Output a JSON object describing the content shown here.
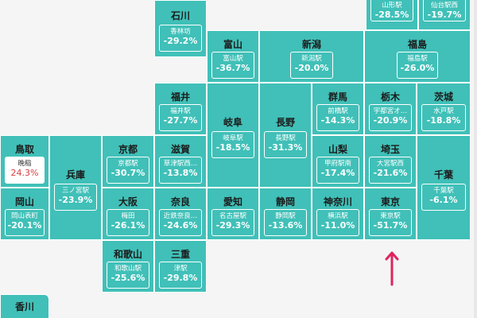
{
  "prefectures": {
    "ishikawa": {
      "name": "石川",
      "station": "香林坊",
      "change": "-29.2%"
    },
    "yamagata": {
      "station": "山形駅",
      "change": "-28.5%"
    },
    "miyagi": {
      "station": "仙台駅西",
      "change": "-19.7%"
    },
    "toyama": {
      "name": "富山",
      "station": "富山駅",
      "change": "-36.7%"
    },
    "niigata": {
      "name": "新潟",
      "station": "新潟駅",
      "change": "-20.0%"
    },
    "fukushima": {
      "name": "福島",
      "station": "福島駅",
      "change": "-26.0%"
    },
    "fukui": {
      "name": "福井",
      "station": "福井駅",
      "change": "-27.7%"
    },
    "gifu": {
      "name": "岐阜",
      "station": "岐阜駅",
      "change": "-18.5%"
    },
    "nagano": {
      "name": "長野",
      "station": "長野駅",
      "change": "-31.3%"
    },
    "gunma": {
      "name": "群馬",
      "station": "前橋駅",
      "change": "-14.3%"
    },
    "tochigi": {
      "name": "栃木",
      "station": "宇都宮オ…",
      "change": "-20.9%"
    },
    "ibaraki": {
      "name": "茨城",
      "station": "水戸駅",
      "change": "-18.8%"
    },
    "tottori": {
      "name": "鳥取",
      "station": "晩稲",
      "change": "24.3%"
    },
    "kyoto": {
      "name": "京都",
      "station": "京都駅",
      "change": "-30.7%"
    },
    "shiga": {
      "name": "滋賀",
      "station": "草津駅西…",
      "change": "-13.8%"
    },
    "yamanashi": {
      "name": "山梨",
      "station": "甲府駅南",
      "change": "-17.4%"
    },
    "saitama": {
      "name": "埼玉",
      "station": "大宮駅西",
      "change": "-21.6%"
    },
    "hyogo": {
      "name": "兵庫",
      "station": "三ノ宮駅",
      "change": "-23.9%"
    },
    "chiba": {
      "name": "千葉",
      "station": "千葉駅",
      "change": "-6.1%"
    },
    "okayama": {
      "name": "岡山",
      "station": "岡山表町",
      "change": "-20.1%"
    },
    "osaka": {
      "name": "大阪",
      "station": "梅田",
      "change": "-26.1%"
    },
    "nara": {
      "name": "奈良",
      "station": "近鉄奈良…",
      "change": "-24.6%"
    },
    "aichi": {
      "name": "愛知",
      "station": "名古屋駅",
      "change": "-29.3%"
    },
    "shizuoka": {
      "name": "静岡",
      "station": "静岡駅",
      "change": "-13.6%"
    },
    "kanagawa": {
      "name": "神奈川",
      "station": "横浜駅",
      "change": "-11.0%"
    },
    "tokyo": {
      "name": "東京",
      "station": "東京駅",
      "change": "-51.7%"
    },
    "wakayama": {
      "name": "和歌山",
      "station": "和歌山駅",
      "change": "-25.6%"
    },
    "mie": {
      "name": "三重",
      "station": "津駅",
      "change": "-29.8%"
    },
    "kagawa": {
      "name": "香川"
    }
  },
  "colors": {
    "tile": "#40c0b8",
    "accent_arrow": "#e0245e",
    "positive": "#d84040"
  }
}
